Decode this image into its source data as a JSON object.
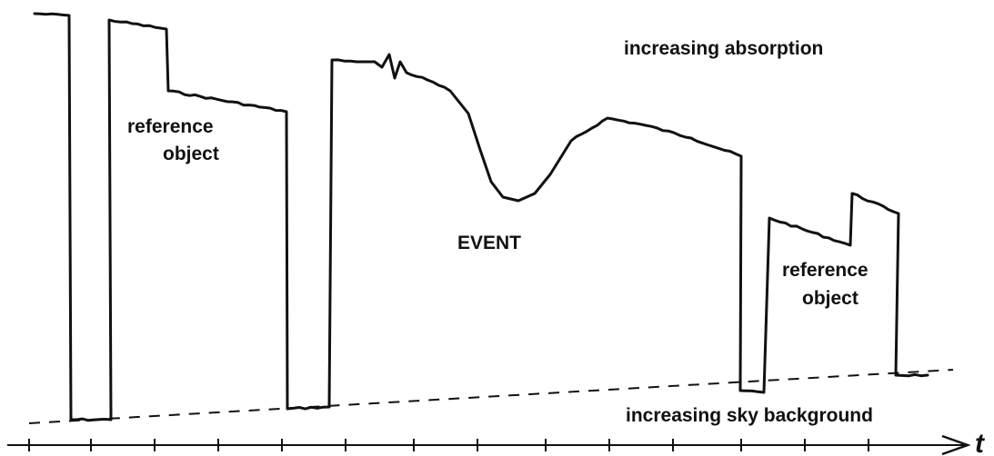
{
  "labels": {
    "absorption": "increasing absorption",
    "reference_left_line1": "reference",
    "reference_left_line2": "object",
    "event": "EVENT",
    "reference_right_line1": "reference",
    "reference_right_line2": "object",
    "sky_background": "increasing sky background",
    "time_axis": "t"
  },
  "colors": {
    "ink": "#111111",
    "background": "#ffffff"
  }
}
